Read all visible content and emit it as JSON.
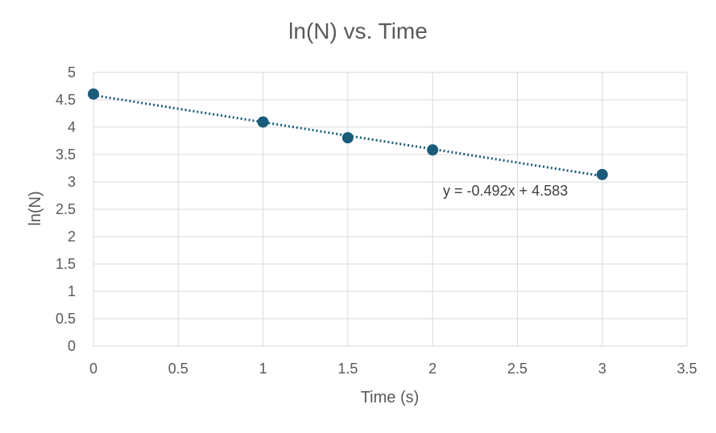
{
  "chart_data": {
    "type": "scatter",
    "title": "ln(N) vs. Time",
    "xlabel": "Time (s)",
    "ylabel": "ln(N)",
    "xlim": [
      0,
      3.5
    ],
    "ylim": [
      0,
      5
    ],
    "x_ticks": [
      "0",
      "0.5",
      "1",
      "1.5",
      "2",
      "2.5",
      "3",
      "3.5"
    ],
    "y_ticks": [
      "0",
      "0.5",
      "1",
      "1.5",
      "2",
      "2.5",
      "3",
      "3.5",
      "4",
      "4.5",
      "5"
    ],
    "grid": true,
    "points": [
      {
        "x": 0,
        "y": 4.605
      },
      {
        "x": 1,
        "y": 4.094
      },
      {
        "x": 1.5,
        "y": 3.807
      },
      {
        "x": 2,
        "y": 3.584
      },
      {
        "x": 3,
        "y": 3.135
      }
    ],
    "trendline": {
      "type": "linear",
      "slope": -0.492,
      "intercept": 4.583,
      "x_range": [
        0,
        3
      ],
      "equation": "y = -0.492x + 4.583"
    },
    "colors": {
      "marker": "#1a5c7a",
      "trendline": "#1a5c7a",
      "grid": "#d9d9d9",
      "text": "#595959"
    }
  }
}
